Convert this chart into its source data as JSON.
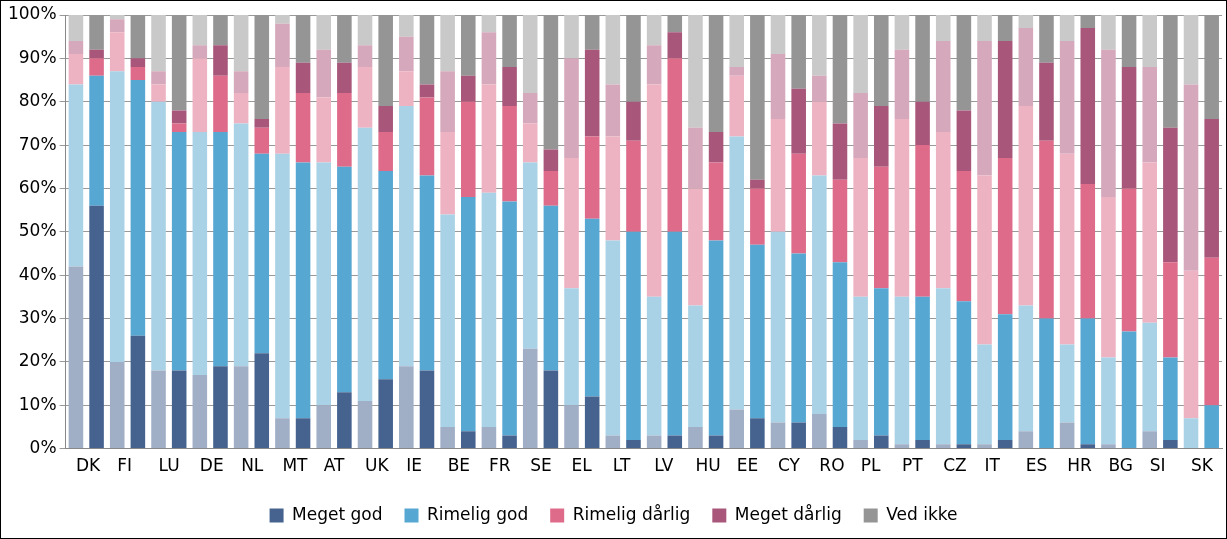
{
  "chart_data": {
    "type": "bar",
    "stacked": true,
    "grid": "y",
    "legend": "bottom",
    "categories": [
      "DK",
      null,
      "FI",
      null,
      "LU",
      null,
      "DE",
      null,
      "NL",
      null,
      "MT",
      null,
      "AT",
      null,
      "UK",
      null,
      "IE",
      null,
      "BE",
      null,
      "FR",
      null,
      "SE",
      null,
      "EL",
      null,
      "LT",
      null,
      "LV",
      null,
      "HU",
      null,
      "EE",
      null,
      "CY",
      null,
      "RO",
      null,
      "PL",
      null,
      "PT",
      null,
      "CZ",
      null,
      "IT",
      null,
      "ES",
      null,
      "HR",
      null,
      "BG",
      null,
      "SI",
      null,
      "SK",
      null
    ],
    "ylim": [
      0,
      100
    ],
    "yticks": [
      {
        "value": 0,
        "label": "0%"
      },
      {
        "value": 10,
        "label": "10%"
      },
      {
        "value": 20,
        "label": "20%"
      },
      {
        "value": 30,
        "label": "30%"
      },
      {
        "value": 40,
        "label": "40%"
      },
      {
        "value": 50,
        "label": "50%"
      },
      {
        "value": 60,
        "label": "60%"
      },
      {
        "value": 70,
        "label": "70%"
      },
      {
        "value": 80,
        "label": "80%"
      },
      {
        "value": 90,
        "label": "90%"
      },
      {
        "value": 100,
        "label": "100%"
      }
    ],
    "series": [
      {
        "name": "Meget god",
        "color": "#46638f",
        "colors": [
          "#a0aec6",
          "#46638f",
          "#a0aec6",
          "#46638f",
          "#a0aec6",
          "#46638f",
          "#a0aec6",
          "#46638f",
          "#a0aec6",
          "#46638f",
          "#a0aec6",
          "#46638f",
          "#a0aec6",
          "#46638f",
          "#a0aec6",
          "#46638f",
          "#a0aec6",
          "#46638f",
          "#a0aec6",
          "#46638f",
          "#a0aec6",
          "#46638f",
          "#a0aec6",
          "#46638f",
          "#a0aec6",
          "#46638f",
          "#a0aec6",
          "#46638f",
          "#a0aec6",
          "#46638f",
          "#a0aec6",
          "#46638f",
          "#a0aec6",
          "#46638f",
          "#a0aec6",
          "#46638f",
          "#a0aec6",
          "#46638f",
          "#a0aec6",
          "#46638f",
          "#a0aec6",
          "#46638f",
          "#a0aec6",
          "#46638f",
          "#a0aec6",
          "#46638f",
          "#a0aec6",
          "#46638f",
          "#a0aec6",
          "#46638f",
          "#a0aec6",
          "#46638f",
          "#a0aec6",
          "#46638f",
          "#a0aec6",
          "#46638f"
        ],
        "values": [
          42,
          56,
          20,
          26,
          18,
          18,
          17,
          19,
          19,
          22,
          7,
          7,
          10,
          13,
          11,
          16,
          19,
          18,
          5,
          4,
          5,
          3,
          23,
          18,
          10,
          12,
          3,
          2,
          3,
          3,
          5,
          3,
          9,
          7,
          6,
          6,
          8,
          5,
          2,
          3,
          1,
          2,
          1,
          1,
          1,
          2,
          4,
          0,
          6,
          1,
          1,
          0,
          4,
          2,
          0,
          0
        ]
      },
      {
        "name": "Rimelig god",
        "color": "#57a7d3",
        "colors": [
          "#aad2e6",
          "#57a7d3",
          "#aad2e6",
          "#57a7d3",
          "#aad2e6",
          "#57a7d3",
          "#aad2e6",
          "#57a7d3",
          "#aad2e6",
          "#57a7d3",
          "#aad2e6",
          "#57a7d3",
          "#aad2e6",
          "#57a7d3",
          "#aad2e6",
          "#57a7d3",
          "#aad2e6",
          "#57a7d3",
          "#aad2e6",
          "#57a7d3",
          "#aad2e6",
          "#57a7d3",
          "#aad2e6",
          "#57a7d3",
          "#aad2e6",
          "#57a7d3",
          "#aad2e6",
          "#57a7d3",
          "#aad2e6",
          "#57a7d3",
          "#aad2e6",
          "#57a7d3",
          "#aad2e6",
          "#57a7d3",
          "#aad2e6",
          "#57a7d3",
          "#aad2e6",
          "#57a7d3",
          "#aad2e6",
          "#57a7d3",
          "#aad2e6",
          "#57a7d3",
          "#aad2e6",
          "#57a7d3",
          "#aad2e6",
          "#57a7d3",
          "#aad2e6",
          "#57a7d3",
          "#aad2e6",
          "#57a7d3",
          "#aad2e6",
          "#57a7d3",
          "#aad2e6",
          "#57a7d3",
          "#aad2e6",
          "#57a7d3"
        ],
        "values": [
          42,
          30,
          67,
          59,
          62,
          55,
          56,
          54,
          56,
          46,
          61,
          59,
          56,
          52,
          63,
          48,
          60,
          45,
          49,
          54,
          54,
          54,
          43,
          38,
          27,
          41,
          45,
          48,
          32,
          47,
          28,
          45,
          63,
          40,
          44,
          39,
          55,
          38,
          33,
          34,
          34,
          33,
          36,
          33,
          23,
          29,
          29,
          30,
          18,
          29,
          20,
          27,
          25,
          19,
          7,
          10
        ]
      },
      {
        "name": "Rimelig dårlig",
        "color": "#de6b8a",
        "colors": [
          "#eeb3c2",
          "#de6b8a",
          "#eeb3c2",
          "#de6b8a",
          "#eeb3c2",
          "#de6b8a",
          "#eeb3c2",
          "#de6b8a",
          "#eeb3c2",
          "#de6b8a",
          "#eeb3c2",
          "#de6b8a",
          "#eeb3c2",
          "#de6b8a",
          "#eeb3c2",
          "#de6b8a",
          "#eeb3c2",
          "#de6b8a",
          "#eeb3c2",
          "#de6b8a",
          "#eeb3c2",
          "#de6b8a",
          "#eeb3c2",
          "#de6b8a",
          "#eeb3c2",
          "#de6b8a",
          "#eeb3c2",
          "#de6b8a",
          "#eeb3c2",
          "#de6b8a",
          "#eeb3c2",
          "#de6b8a",
          "#eeb3c2",
          "#de6b8a",
          "#eeb3c2",
          "#de6b8a",
          "#eeb3c2",
          "#de6b8a",
          "#eeb3c2",
          "#de6b8a",
          "#eeb3c2",
          "#de6b8a",
          "#eeb3c2",
          "#de6b8a",
          "#eeb3c2",
          "#de6b8a",
          "#eeb3c2",
          "#de6b8a",
          "#eeb3c2",
          "#de6b8a",
          "#eeb3c2",
          "#de6b8a",
          "#eeb3c2",
          "#de6b8a",
          "#eeb3c2",
          "#de6b8a"
        ],
        "values": [
          7,
          4,
          9,
          3,
          4,
          2,
          17,
          13,
          7,
          6,
          20,
          16,
          15,
          17,
          14,
          9,
          8,
          18,
          19,
          22,
          25,
          22,
          9,
          8,
          30,
          19,
          24,
          21,
          49,
          40,
          27,
          18,
          14,
          13,
          26,
          23,
          17,
          19,
          32,
          28,
          41,
          35,
          36,
          30,
          39,
          36,
          46,
          41,
          44,
          31,
          37,
          33,
          37,
          22,
          34,
          34
        ]
      },
      {
        "name": "Meget dårlig",
        "color": "#a85679",
        "colors": [
          "#d5a8bb",
          "#a85679",
          "#d5a8bb",
          "#a85679",
          "#d5a8bb",
          "#a85679",
          "#d5a8bb",
          "#a85679",
          "#d5a8bb",
          "#a85679",
          "#d5a8bb",
          "#a85679",
          "#d5a8bb",
          "#a85679",
          "#d5a8bb",
          "#a85679",
          "#d5a8bb",
          "#a85679",
          "#d5a8bb",
          "#a85679",
          "#d5a8bb",
          "#a85679",
          "#d5a8bb",
          "#a85679",
          "#d5a8bb",
          "#a85679",
          "#d5a8bb",
          "#a85679",
          "#d5a8bb",
          "#a85679",
          "#d5a8bb",
          "#a85679",
          "#d5a8bb",
          "#a85679",
          "#d5a8bb",
          "#a85679",
          "#d5a8bb",
          "#a85679",
          "#d5a8bb",
          "#a85679",
          "#d5a8bb",
          "#a85679",
          "#d5a8bb",
          "#a85679",
          "#d5a8bb",
          "#a85679",
          "#d5a8bb",
          "#a85679",
          "#d5a8bb",
          "#a85679",
          "#d5a8bb",
          "#a85679",
          "#d5a8bb",
          "#a85679",
          "#d5a8bb",
          "#a85679"
        ],
        "values": [
          3,
          2,
          3,
          2,
          3,
          3,
          3,
          7,
          5,
          2,
          10,
          7,
          11,
          7,
          5,
          6,
          8,
          3,
          14,
          6,
          12,
          9,
          7,
          5,
          23,
          20,
          12,
          9,
          9,
          6,
          14,
          7,
          2,
          2,
          15,
          15,
          6,
          13,
          15,
          14,
          16,
          10,
          21,
          14,
          31,
          27,
          18,
          18,
          26,
          36,
          34,
          28,
          22,
          31,
          43,
          32
        ]
      },
      {
        "name": "Ved ikke",
        "color": "#959595",
        "colors": [
          "#c9c9c9",
          "#959595",
          "#c9c9c9",
          "#959595",
          "#c9c9c9",
          "#959595",
          "#c9c9c9",
          "#959595",
          "#c9c9c9",
          "#959595",
          "#c9c9c9",
          "#959595",
          "#c9c9c9",
          "#959595",
          "#c9c9c9",
          "#959595",
          "#c9c9c9",
          "#959595",
          "#c9c9c9",
          "#959595",
          "#c9c9c9",
          "#959595",
          "#c9c9c9",
          "#959595",
          "#c9c9c9",
          "#959595",
          "#c9c9c9",
          "#959595",
          "#c9c9c9",
          "#959595",
          "#c9c9c9",
          "#959595",
          "#c9c9c9",
          "#959595",
          "#c9c9c9",
          "#959595",
          "#c9c9c9",
          "#959595",
          "#c9c9c9",
          "#959595",
          "#c9c9c9",
          "#959595",
          "#c9c9c9",
          "#959595",
          "#c9c9c9",
          "#959595",
          "#c9c9c9",
          "#959595",
          "#c9c9c9",
          "#959595",
          "#c9c9c9",
          "#959595",
          "#c9c9c9",
          "#959595",
          "#c9c9c9",
          "#959595"
        ],
        "values": [
          6,
          8,
          1,
          10,
          13,
          22,
          7,
          7,
          13,
          24,
          2,
          11,
          8,
          11,
          7,
          21,
          5,
          16,
          13,
          14,
          4,
          12,
          18,
          31,
          10,
          8,
          16,
          20,
          7,
          4,
          26,
          27,
          12,
          38,
          9,
          17,
          14,
          25,
          18,
          21,
          8,
          20,
          6,
          22,
          6,
          6,
          3,
          11,
          6,
          3,
          8,
          12,
          12,
          26,
          16,
          24
        ]
      }
    ]
  }
}
